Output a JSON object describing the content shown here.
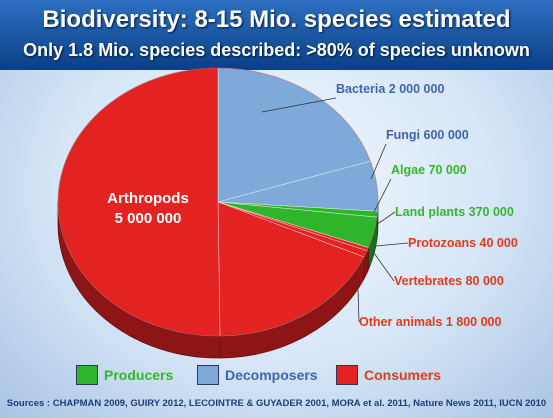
{
  "title": "Biodiversity: 8-15 Mio. species estimated",
  "subtitle": "Only 1.8 Mio. species described: >80% of species unknown",
  "chart_data": {
    "type": "pie",
    "slices": [
      {
        "label": "Bacteria",
        "value_text": "2 000 000",
        "value": 2000000,
        "group": "Decomposers",
        "color": "#7fa9d8",
        "label_color": "#3f64b4"
      },
      {
        "label": "Fungi",
        "value_text": "600 000",
        "value": 600000,
        "group": "Decomposers",
        "color": "#7fa9d8",
        "label_color": "#3f64b4"
      },
      {
        "label": "Algae",
        "value_text": "70 000",
        "value": 70000,
        "group": "Producers",
        "color": "#2fb52b",
        "label_color": "#32b82a"
      },
      {
        "label": "Land plants",
        "value_text": "370 000",
        "value": 370000,
        "group": "Producers",
        "color": "#2fb52b",
        "label_color": "#32b82a"
      },
      {
        "label": "Protozoans",
        "value_text": "40 000",
        "value": 40000,
        "group": "Consumers",
        "color": "#e32222",
        "label_color": "#e23a1c"
      },
      {
        "label": "Vertebrates",
        "value_text": "80 000",
        "value": 80000,
        "group": "Consumers",
        "color": "#e32222",
        "label_color": "#e23a1c"
      },
      {
        "label": "Other animals",
        "value_text": "1 800 000",
        "value": 1800000,
        "group": "Consumers",
        "color": "#e32222",
        "label_color": "#e23a1c"
      },
      {
        "label": "Arthropods",
        "value_text": "5 000 000",
        "value": 5000000,
        "group": "Consumers",
        "color": "#e32222",
        "label_color": "#ffffff"
      }
    ],
    "legend": [
      {
        "label": "Producers",
        "color": "#2fb52b"
      },
      {
        "label": "Decomposers",
        "color": "#7fa9d8"
      },
      {
        "label": "Consumers",
        "color": "#e32222"
      }
    ],
    "legend_position": "bottom"
  },
  "sources": "Sources : CHAPMAN 2009, GUIRY 2012, LECOINTRE & GUYADER 2001, MORA et al. 2011, Nature News 2011, IUCN 2010"
}
